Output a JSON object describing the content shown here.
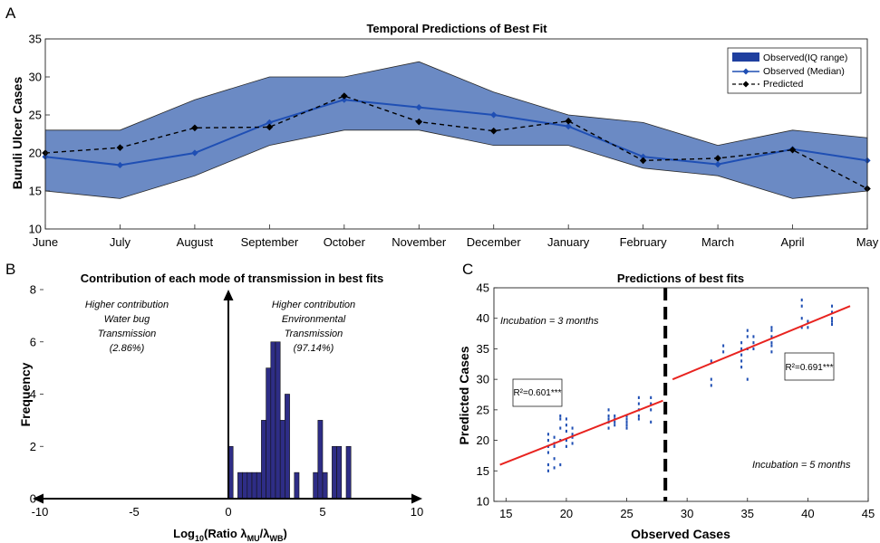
{
  "figure": {
    "panels": [
      "A",
      "B",
      "C"
    ]
  },
  "chart_data": [
    {
      "panel": "A",
      "type": "line",
      "title": "Temporal Predictions of Best Fit",
      "xlabel": "",
      "ylabel": "Buruli Ulcer Cases",
      "ylim": [
        10,
        35
      ],
      "yticks": [
        10,
        15,
        20,
        25,
        30,
        35
      ],
      "categories": [
        "June",
        "July",
        "August",
        "September",
        "October",
        "November",
        "December",
        "January",
        "February",
        "March",
        "April",
        "May"
      ],
      "band": {
        "name": "Observed(IQ range)",
        "lower": [
          15,
          14,
          17,
          21,
          23,
          23,
          21,
          21,
          18,
          17,
          14,
          15
        ],
        "upper": [
          23,
          23,
          27,
          30,
          30,
          32,
          28,
          25,
          24,
          21,
          23,
          22
        ],
        "color": "#6b8ac4"
      },
      "series": [
        {
          "name": "Observed (Median)",
          "values": [
            19.5,
            18.4,
            20,
            24,
            27,
            26,
            25,
            23.5,
            19.5,
            18.5,
            20.5,
            19
          ],
          "color": "#1f4fb4",
          "style": "solid",
          "marker": "diamond"
        },
        {
          "name": "Predicted",
          "values": [
            20,
            20.7,
            23.3,
            23.4,
            27.5,
            24.1,
            22.9,
            24.2,
            19,
            19.3,
            20.4,
            15.3
          ],
          "color": "#000000",
          "style": "dashed",
          "marker": "diamond"
        }
      ],
      "legend": "top-right",
      "grid": false
    },
    {
      "panel": "B",
      "type": "bar",
      "title": "Contribution of each mode of transmission in best fits",
      "xlabel": "Log10(Ratio λMU/λWB)",
      "ylabel": "Frequency",
      "xlim": [
        -10,
        10
      ],
      "ylim": [
        0,
        8
      ],
      "xticks": [
        -10,
        -5,
        0,
        5,
        10
      ],
      "yticks": [
        0,
        2,
        4,
        6,
        8
      ],
      "bin_width": 0.25,
      "bins": [
        {
          "x": 0.0,
          "count": 2
        },
        {
          "x": 0.25,
          "count": 0
        },
        {
          "x": 0.5,
          "count": 1
        },
        {
          "x": 0.75,
          "count": 1
        },
        {
          "x": 1.0,
          "count": 1
        },
        {
          "x": 1.25,
          "count": 1
        },
        {
          "x": 1.5,
          "count": 1
        },
        {
          "x": 1.75,
          "count": 3
        },
        {
          "x": 2.0,
          "count": 5
        },
        {
          "x": 2.25,
          "count": 6
        },
        {
          "x": 2.5,
          "count": 6
        },
        {
          "x": 2.75,
          "count": 3
        },
        {
          "x": 3.0,
          "count": 4
        },
        {
          "x": 3.25,
          "count": 0
        },
        {
          "x": 3.5,
          "count": 1
        },
        {
          "x": 4.5,
          "count": 1
        },
        {
          "x": 4.75,
          "count": 3
        },
        {
          "x": 5.0,
          "count": 1
        },
        {
          "x": 5.5,
          "count": 2
        },
        {
          "x": 5.75,
          "count": 2
        },
        {
          "x": 6.25,
          "count": 2
        }
      ],
      "bar_color": "#2e2d86",
      "annotations": {
        "left": [
          "Higher contribution",
          "Water bug",
          "Transmission",
          "(2.86%)"
        ],
        "right": [
          "Higher contribution",
          "Environmental",
          "Transmission",
          "(97.14%)"
        ]
      }
    },
    {
      "panel": "C",
      "type": "scatter",
      "title": "Predictions of best fits",
      "xlabel": "Observed Cases",
      "ylabel": "Predicted Cases",
      "xlim": [
        14,
        45
      ],
      "ylim": [
        10,
        45
      ],
      "xticks": [
        15,
        20,
        25,
        30,
        35,
        40,
        45
      ],
      "yticks": [
        10,
        15,
        20,
        25,
        30,
        35,
        40,
        45
      ],
      "divider_x": 28.2,
      "point_color": "#1f4fb4",
      "fit_color": "#e8231f",
      "groups": [
        {
          "x": 18.5,
          "y": [
            15.0,
            16.0,
            18.0,
            19.0,
            20.0,
            21.0
          ]
        },
        {
          "x": 19.0,
          "y": [
            15.5,
            17.0,
            19.0,
            19.5,
            20.5
          ]
        },
        {
          "x": 19.5,
          "y": [
            16.0,
            20.0,
            22.0,
            23.5,
            24.0
          ]
        },
        {
          "x": 20.0,
          "y": [
            19.0,
            20.0,
            21.5,
            22.5,
            23.5
          ]
        },
        {
          "x": 20.5,
          "y": [
            19.5,
            20.5,
            21.0,
            22.0
          ]
        },
        {
          "x": 23.5,
          "y": [
            22.0,
            23.0,
            23.5,
            24.0,
            25.0
          ]
        },
        {
          "x": 24.0,
          "y": [
            22.5,
            23.0,
            23.5,
            24.0
          ]
        },
        {
          "x": 25.0,
          "y": [
            22.0,
            22.5,
            23.0,
            23.5,
            24.0
          ]
        },
        {
          "x": 26.0,
          "y": [
            23.5,
            24.0,
            25.0,
            26.0,
            27.0
          ]
        },
        {
          "x": 27.0,
          "y": [
            23.0,
            25.0,
            26.0,
            27.0
          ]
        },
        {
          "x": 32.0,
          "y": [
            29.0,
            30.0,
            33.0
          ]
        },
        {
          "x": 33.0,
          "y": [
            34.5,
            35.5
          ]
        },
        {
          "x": 34.5,
          "y": [
            32.0,
            33.0,
            34.0,
            35.0,
            36.0
          ]
        },
        {
          "x": 35.0,
          "y": [
            30.0,
            35.0,
            37.0,
            38.0
          ]
        },
        {
          "x": 35.5,
          "y": [
            35.0,
            36.0,
            37.0
          ]
        },
        {
          "x": 37.0,
          "y": [
            34.5,
            35.5,
            36.0,
            37.0,
            38.0,
            38.5
          ]
        },
        {
          "x": 39.5,
          "y": [
            38.5,
            40.0,
            42.0,
            43.0
          ]
        },
        {
          "x": 40.0,
          "y": [
            38.5,
            39.5
          ]
        },
        {
          "x": 42.0,
          "y": [
            39.0,
            39.5,
            40.0,
            41.0,
            42.0
          ]
        }
      ],
      "fits": [
        {
          "x0": 14.5,
          "y0": 16.0,
          "x1": 28.0,
          "y1": 26.5
        },
        {
          "x0": 28.8,
          "y0": 30.0,
          "x1": 43.5,
          "y1": 42.0
        }
      ],
      "annotations": {
        "incubation_3": "Incubation = 3 months",
        "incubation_5": "Incubation = 5 months",
        "r2_left": "R²=0.601***",
        "r2_right": "R²=0.691***"
      }
    }
  ]
}
